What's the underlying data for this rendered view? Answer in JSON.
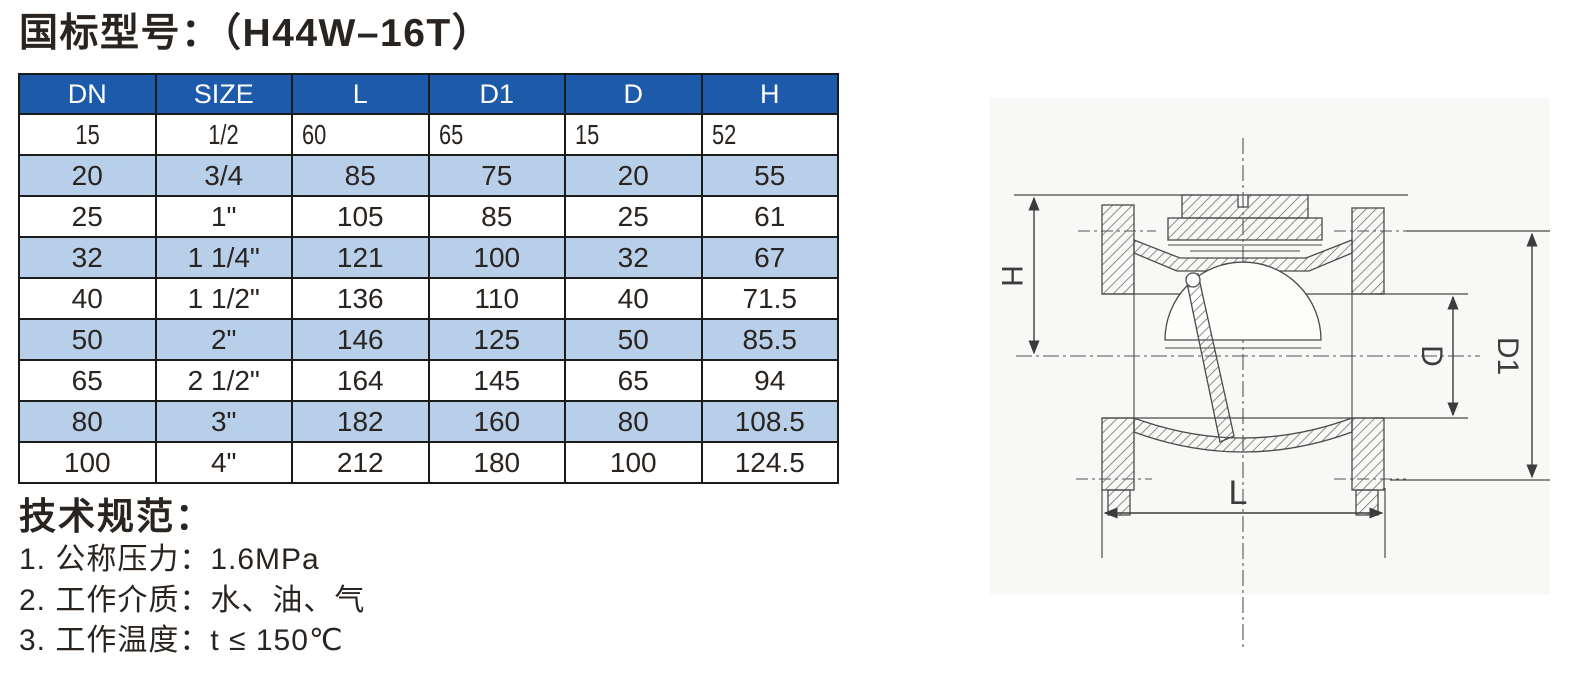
{
  "page": {
    "title": "国标型号：（H44W–16T）"
  },
  "table": {
    "headers": [
      "DN",
      "SIZE",
      "L",
      "D1",
      "D",
      "H"
    ],
    "rows": [
      [
        "15",
        "1/2",
        "60",
        "65",
        "15",
        "52"
      ],
      [
        "20",
        "3/4",
        "85",
        "75",
        "20",
        "55"
      ],
      [
        "25",
        "1\"",
        "105",
        "85",
        "25",
        "61"
      ],
      [
        "32",
        "1 1/4\"",
        "121",
        "100",
        "32",
        "67"
      ],
      [
        "40",
        "1 1/2\"",
        "136",
        "110",
        "40",
        "71.5"
      ],
      [
        "50",
        "2\"",
        "146",
        "125",
        "50",
        "85.5"
      ],
      [
        "65",
        "2 1/2\"",
        "164",
        "145",
        "65",
        "94"
      ],
      [
        "80",
        "3\"",
        "182",
        "160",
        "80",
        "108.5"
      ],
      [
        "100",
        "4\"",
        "212",
        "180",
        "100",
        "124.5"
      ]
    ]
  },
  "specs": {
    "title": "技术规范：",
    "items": [
      "1. 公称压力：1.6MPa",
      "2. 工作介质：水、油、气",
      "3. 工作温度：t ≤ 150℃"
    ]
  },
  "drawing": {
    "labels": {
      "h": "H",
      "d": "D",
      "d1": "D1",
      "l": "L"
    }
  },
  "colors": {
    "header_bg": "#1d5aa9",
    "row_alt_bg": "#b8cfe9",
    "border": "#1b1b1b",
    "text": "#2a2421",
    "header_text": "#ffffff"
  }
}
